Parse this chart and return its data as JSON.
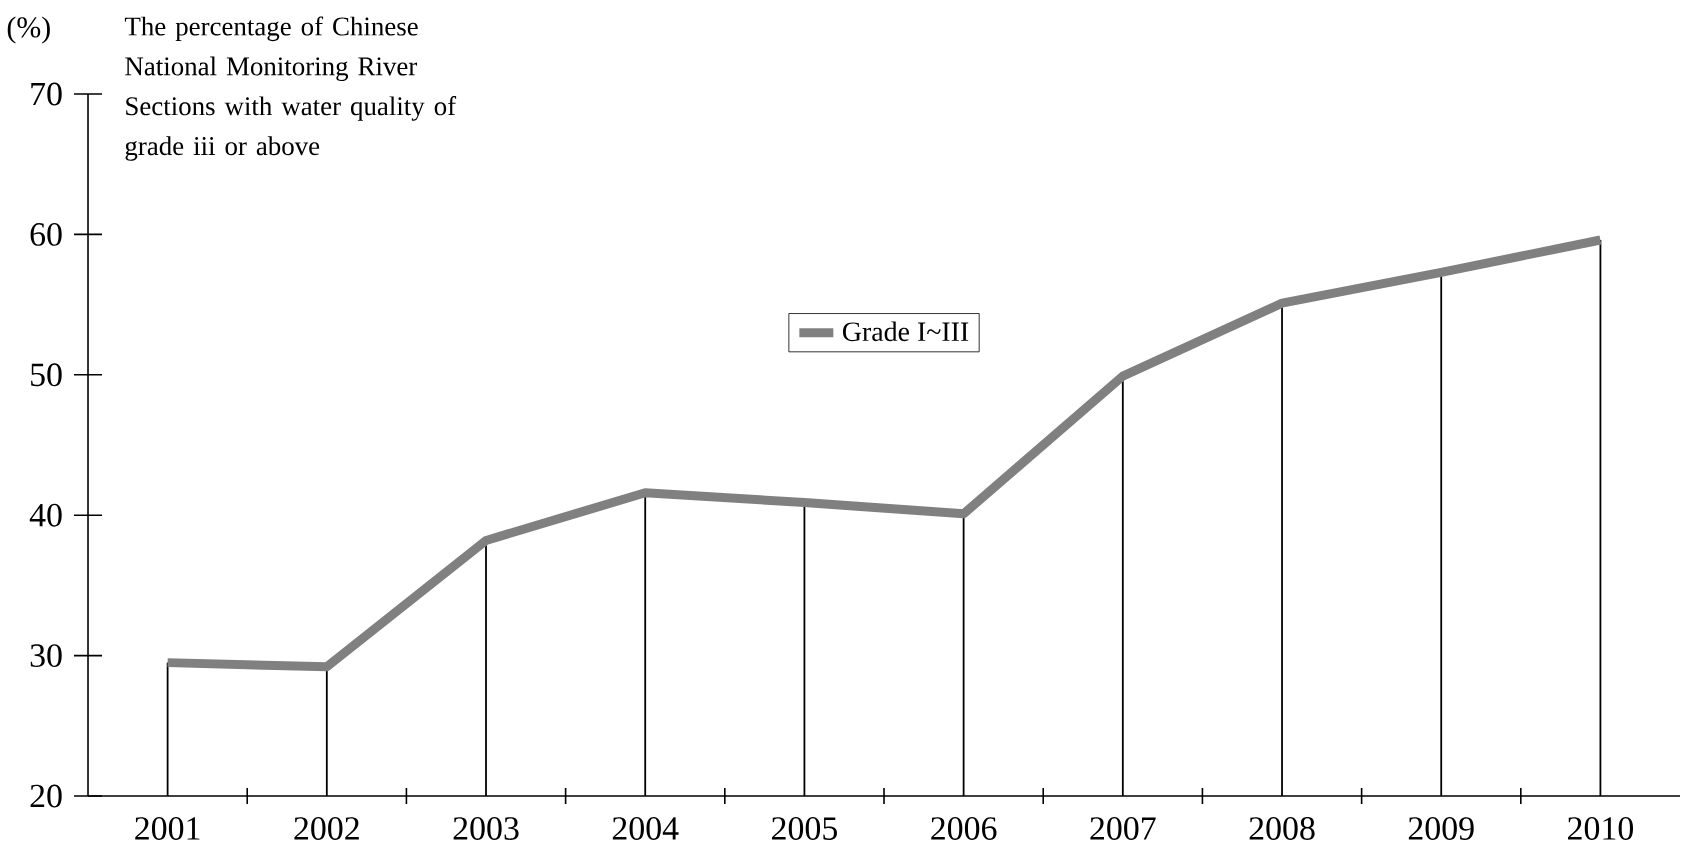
{
  "chart_data": {
    "type": "line",
    "title": "The percentage of Chinese National Monitoring River Sections with water quality of grade iii or above",
    "ylabel": "(%)",
    "categories": [
      "2001",
      "2002",
      "2003",
      "2004",
      "2005",
      "2006",
      "2007",
      "2008",
      "2009",
      "2010"
    ],
    "series": [
      {
        "type": "bar",
        "color": "#000000",
        "values": [
          29.5,
          29.2,
          38.2,
          41.6,
          40.9,
          40.1,
          49.9,
          55.1,
          57.3,
          59.6
        ]
      },
      {
        "name": "Grade I~III",
        "color": "#808080",
        "values": [
          29.5,
          29.2,
          38.2,
          41.6,
          40.9,
          40.1,
          49.9,
          55.1,
          57.3,
          59.6
        ]
      }
    ],
    "ylim": [
      20,
      70
    ],
    "yticks": [
      20,
      30,
      40,
      50,
      60,
      70
    ],
    "legend": "top",
    "grid": false,
    "marker": "none",
    "line_style": "solid"
  }
}
